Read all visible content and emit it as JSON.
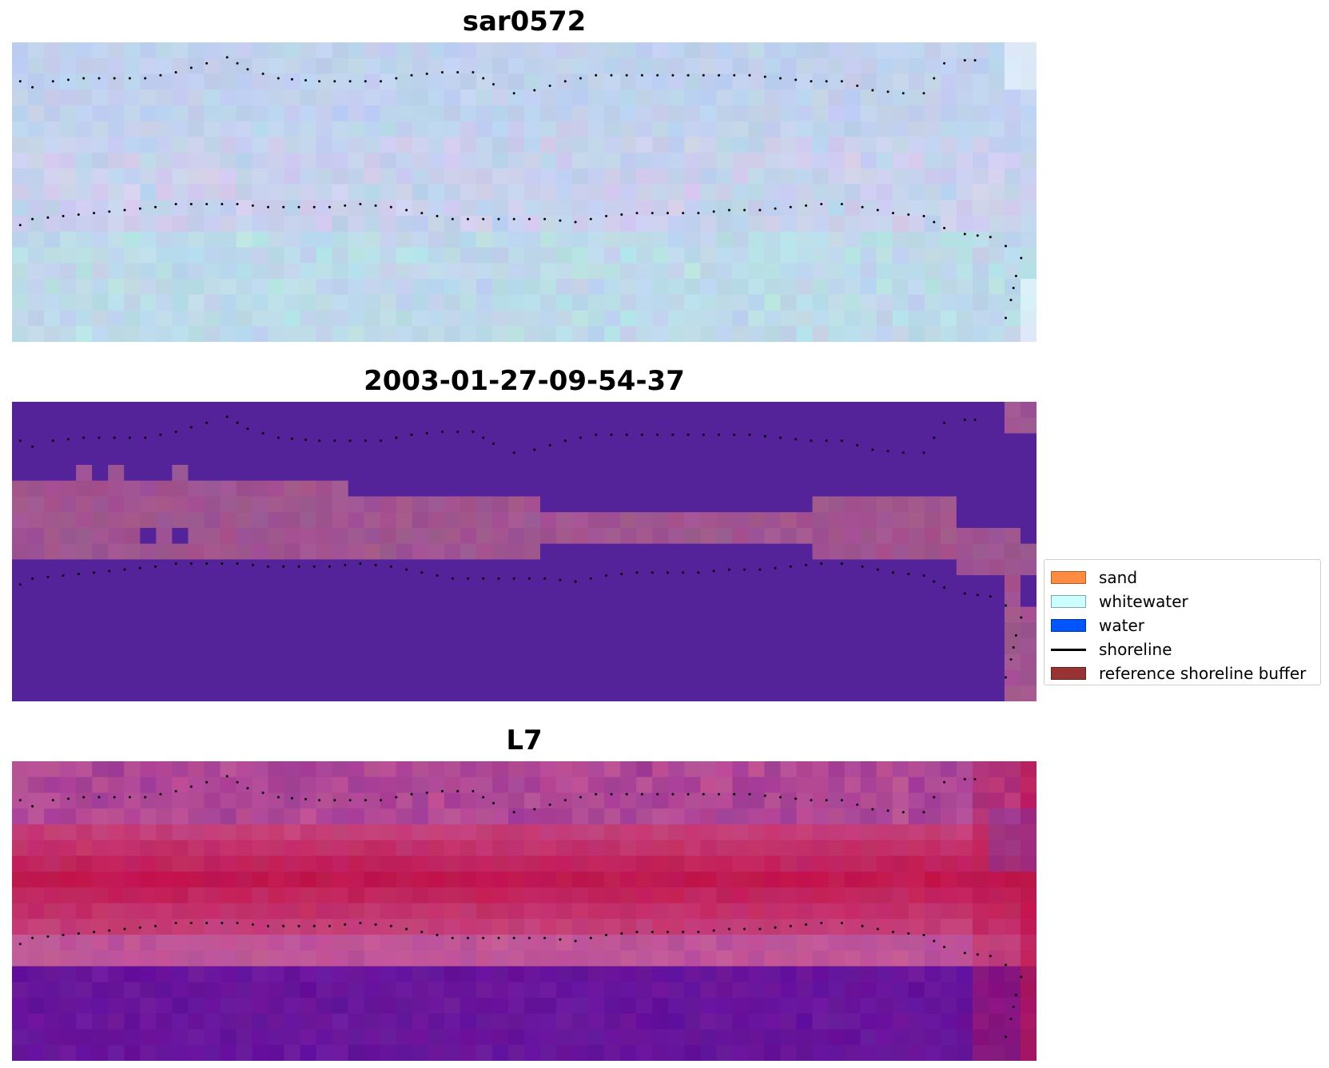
{
  "panels": [
    {
      "title": "sar0572",
      "style": "rgb-composite"
    },
    {
      "title": "2003-01-27-09-54-37",
      "style": "classified"
    },
    {
      "title": "L7",
      "style": "index"
    }
  ],
  "legend": {
    "items": [
      {
        "label": "sand",
        "color": "#ff8c40",
        "kind": "patch"
      },
      {
        "label": "whitewater",
        "color": "#ccffff",
        "kind": "patch"
      },
      {
        "label": "water",
        "color": "#0055ff",
        "kind": "patch"
      },
      {
        "label": "shoreline",
        "color": "#000000",
        "kind": "line"
      },
      {
        "label": "reference shoreline buffer",
        "color": "#993333",
        "kind": "patch"
      }
    ]
  },
  "colors": {
    "classified_background": "#54239a",
    "classified_buffer": "#a05590",
    "composite_base": "#bcd4ec",
    "index_sand": "#c0124a",
    "index_water": "#6e1a9e",
    "shoreline_dots": "#000000"
  }
}
